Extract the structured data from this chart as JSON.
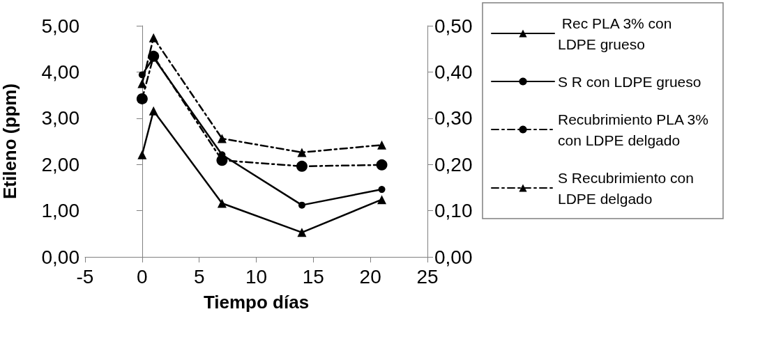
{
  "chart_data": {
    "type": "line",
    "xlabel": "Tiempo días",
    "ylabel": "Etileno (ppm)",
    "xlim": [
      -5,
      25
    ],
    "xticks": [
      -5,
      0,
      5,
      10,
      15,
      20,
      25
    ],
    "ylim": [
      0,
      5
    ],
    "yticks": [
      {
        "value": 0,
        "label": "0,00"
      },
      {
        "value": 1,
        "label": "1,00"
      },
      {
        "value": 2,
        "label": "2,00"
      },
      {
        "value": 3,
        "label": "3,00"
      },
      {
        "value": 4,
        "label": "4,00"
      },
      {
        "value": 5,
        "label": "5,00"
      }
    ],
    "y2lim": [
      0,
      0.5
    ],
    "y2ticks": [
      {
        "value": 0,
        "label": "0,00"
      },
      {
        "value": 0.1,
        "label": "0,10"
      },
      {
        "value": 0.2,
        "label": "0,20"
      },
      {
        "value": 0.3,
        "label": "0,30"
      },
      {
        "value": 0.4,
        "label": "0,40"
      },
      {
        "value": 0.5,
        "label": "0,50"
      }
    ],
    "x": [
      0,
      1,
      7,
      14,
      21
    ],
    "legend": "right",
    "series": [
      {
        "name": " Rec PLA 3% con LDPE grueso",
        "color": "#000000",
        "values": [
          2.21,
          3.16,
          1.16,
          0.53,
          1.24
        ],
        "marker": "triangle",
        "line_style": "solid"
      },
      {
        "name": "S R con LDPE grueso",
        "color": "#000000",
        "values": [
          3.94,
          4.31,
          2.21,
          1.12,
          1.46
        ],
        "marker": "circle",
        "line_style": "solid"
      },
      {
        "name": "Recubrimiento PLA 3% con LDPE delgado",
        "color": "#000000",
        "values": [
          3.42,
          4.34,
          2.09,
          1.96,
          1.99
        ],
        "marker": "circle",
        "line_style": "dashed"
      },
      {
        "name": "S Recubrimiento con LDPE delgado",
        "color": "#000000",
        "values": [
          3.75,
          4.74,
          2.56,
          2.26,
          2.42
        ],
        "marker": "triangle",
        "line_style": "dashed"
      }
    ]
  }
}
